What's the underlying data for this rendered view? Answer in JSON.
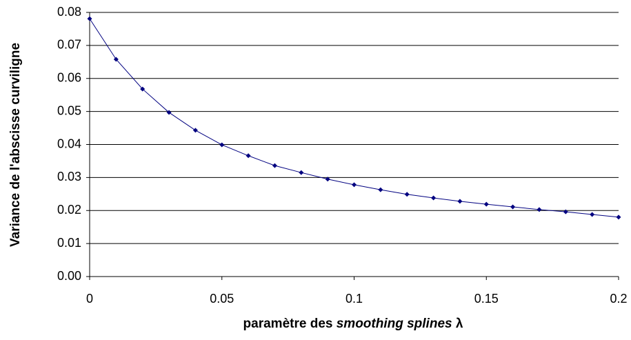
{
  "chart_data": {
    "type": "line",
    "xlabel": [
      "paramètre des ",
      "smoothing splines",
      " λ"
    ],
    "ylabel": "Variance de l'abscisse curviligne",
    "x": [
      0,
      0.01,
      0.02,
      0.03,
      0.04,
      0.05,
      0.06,
      0.07,
      0.08,
      0.09,
      0.1,
      0.11,
      0.12,
      0.13,
      0.14,
      0.15,
      0.16,
      0.17,
      0.18,
      0.19,
      0.2
    ],
    "series": [
      {
        "color": "#000080",
        "values": [
          0.0781,
          0.0658,
          0.0568,
          0.0497,
          0.0443,
          0.0399,
          0.0366,
          0.0336,
          0.0315,
          0.0295,
          0.0278,
          0.0263,
          0.0249,
          0.0238,
          0.0228,
          0.0219,
          0.0211,
          0.0203,
          0.0196,
          0.0188,
          0.018
        ]
      }
    ],
    "xlim": [
      0,
      0.2
    ],
    "xticks": [
      0,
      0.05,
      0.1,
      0.15,
      0.2
    ],
    "ylim": [
      0,
      0.08
    ],
    "yticks": [
      {
        "value": 0,
        "label": "0.00"
      },
      {
        "value": 0.01,
        "label": "0.01"
      },
      {
        "value": 0.02,
        "label": "0.02"
      },
      {
        "value": 0.03,
        "label": "0.03"
      },
      {
        "value": 0.04,
        "label": "0.04"
      },
      {
        "value": 0.05,
        "label": "0.05"
      },
      {
        "value": 0.06,
        "label": "0.06"
      },
      {
        "value": 0.07,
        "label": "0.07"
      },
      {
        "value": 0.08,
        "label": "0.08"
      }
    ],
    "grid": true
  }
}
